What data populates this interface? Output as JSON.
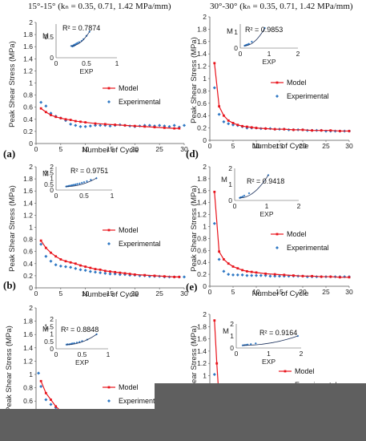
{
  "headers": {
    "left": "15°-15°  (kₙ = 0.35, 0.71, 1.42 MPa/mm)",
    "right": "30°-30°  (kₙ = 0.35, 0.71, 1.42 MPa/mm)"
  },
  "colors": {
    "model": "#e8141c",
    "experimental": "#2f78c4",
    "inset_trend": "#1a2f5a",
    "occluder": "#5f5f5f"
  },
  "chart_data": [
    {
      "id": "a",
      "type": "line",
      "panel_label": "(a)",
      "xlabel": "Number of Cycle",
      "ylabel": "Peak Shear Stress (MPa)",
      "xlim": [
        0,
        30
      ],
      "ylim": [
        0,
        2
      ],
      "xticks": [
        0,
        5,
        10,
        15,
        20,
        25,
        30
      ],
      "yticks": [
        0,
        0.2,
        0.4,
        0.6,
        0.8,
        1,
        1.2,
        1.4,
        1.6,
        1.8,
        2
      ],
      "legend": [
        "Model",
        "Experimental"
      ],
      "model": {
        "x": [
          1,
          2,
          3,
          4,
          5,
          6,
          7,
          8,
          9,
          10,
          12,
          14,
          16,
          18,
          20,
          22,
          24,
          26,
          28,
          29
        ],
        "y": [
          0.58,
          0.52,
          0.47,
          0.44,
          0.42,
          0.4,
          0.39,
          0.37,
          0.36,
          0.35,
          0.33,
          0.32,
          0.31,
          0.3,
          0.29,
          0.28,
          0.27,
          0.26,
          0.25,
          0.25
        ]
      },
      "experimental": {
        "x": [
          1,
          2,
          3,
          4,
          5,
          6,
          7,
          8,
          9,
          10,
          11,
          12,
          13,
          14,
          15,
          16,
          17,
          18,
          19,
          20,
          21,
          22,
          23,
          24,
          25,
          26,
          27,
          28,
          29,
          30
        ],
        "y": [
          0.68,
          0.62,
          0.5,
          0.45,
          0.42,
          0.38,
          0.32,
          0.3,
          0.28,
          0.28,
          0.29,
          0.3,
          0.3,
          0.3,
          0.29,
          0.3,
          0.31,
          0.3,
          0.29,
          0.28,
          0.29,
          0.3,
          0.3,
          0.29,
          0.3,
          0.29,
          0.28,
          0.3,
          0.27,
          0.3
        ]
      },
      "inset": {
        "r2": "R² = 0.7874",
        "xlabel": "EXP",
        "ylabel": "M",
        "xlim": [
          0,
          1
        ],
        "ylim": [
          0,
          0.8
        ],
        "xticks": [
          0,
          0.5,
          1
        ],
        "yticks": [
          0,
          0.5
        ],
        "x": [
          0.25,
          0.27,
          0.28,
          0.29,
          0.3,
          0.3,
          0.31,
          0.32,
          0.33,
          0.35,
          0.38,
          0.42,
          0.45,
          0.5,
          0.55
        ],
        "y": [
          0.28,
          0.27,
          0.29,
          0.28,
          0.3,
          0.31,
          0.3,
          0.32,
          0.33,
          0.35,
          0.37,
          0.4,
          0.44,
          0.52,
          0.62
        ]
      }
    },
    {
      "id": "b",
      "type": "line",
      "panel_label": "(b)",
      "xlabel": "Number of Cycle",
      "ylabel": "Peak Shear Stress (MPa)",
      "xlim": [
        0,
        30
      ],
      "ylim": [
        0,
        2
      ],
      "xticks": [
        0,
        5,
        10,
        15,
        20,
        25,
        30
      ],
      "yticks": [
        0,
        0.2,
        0.4,
        0.6,
        0.8,
        1,
        1.2,
        1.4,
        1.6,
        1.8,
        2
      ],
      "legend": [
        "Model",
        "Experimental"
      ],
      "model": {
        "x": [
          1,
          2,
          3,
          4,
          5,
          6,
          7,
          8,
          9,
          10,
          11,
          12,
          13,
          14,
          15,
          16,
          17,
          18,
          19,
          20,
          22,
          24,
          26,
          28,
          29
        ],
        "y": [
          0.78,
          0.66,
          0.58,
          0.52,
          0.47,
          0.44,
          0.42,
          0.4,
          0.37,
          0.35,
          0.33,
          0.31,
          0.3,
          0.28,
          0.27,
          0.26,
          0.25,
          0.24,
          0.23,
          0.22,
          0.21,
          0.2,
          0.19,
          0.18,
          0.18
        ]
      },
      "experimental": {
        "x": [
          1,
          2,
          3,
          4,
          5,
          6,
          7,
          8,
          9,
          10,
          11,
          12,
          13,
          14,
          15,
          16,
          17,
          18,
          19,
          20,
          21,
          22,
          23,
          24,
          25,
          26,
          27,
          28,
          29,
          30
        ],
        "y": [
          0.72,
          0.52,
          0.44,
          0.38,
          0.36,
          0.35,
          0.34,
          0.32,
          0.3,
          0.29,
          0.27,
          0.26,
          0.25,
          0.24,
          0.23,
          0.23,
          0.22,
          0.22,
          0.21,
          0.21,
          0.2,
          0.2,
          0.19,
          0.19,
          0.19,
          0.18,
          0.18,
          0.18,
          0.18,
          0.18
        ]
      },
      "inset": {
        "r2": "R² = 0.9751",
        "xlabel": "",
        "ylabel": "M",
        "xlim": [
          0,
          1
        ],
        "ylim": [
          0,
          2
        ],
        "xticks": [
          0,
          0.5,
          1
        ],
        "yticks": [
          0,
          0.5,
          1,
          1.5,
          2
        ],
        "x": [
          0.18,
          0.2,
          0.22,
          0.24,
          0.26,
          0.28,
          0.3,
          0.32,
          0.35,
          0.38,
          0.42,
          0.46,
          0.5,
          0.55,
          0.62,
          0.72
        ],
        "y": [
          0.3,
          0.32,
          0.34,
          0.36,
          0.38,
          0.4,
          0.42,
          0.45,
          0.48,
          0.52,
          0.56,
          0.62,
          0.68,
          0.76,
          0.88,
          1.02
        ]
      }
    },
    {
      "id": "c",
      "type": "line",
      "panel_label": "",
      "xlabel": "",
      "ylabel": "Peak Shear Stress (MPa)",
      "xlim": [
        0,
        30
      ],
      "ylim": [
        0,
        2
      ],
      "xticks": [],
      "yticks": [
        0.4,
        0.6,
        0.8,
        1,
        1.2,
        1.4,
        1.6,
        1.8,
        2
      ],
      "legend": [
        "Model",
        "Experimental"
      ],
      "model": {
        "x": [
          1,
          2,
          3,
          4,
          5
        ],
        "y": [
          0.9,
          0.72,
          0.62,
          0.52,
          0.45
        ]
      },
      "experimental": {
        "x": [
          0.5,
          1,
          2,
          3,
          4,
          5
        ],
        "y": [
          1.02,
          0.82,
          0.62,
          0.55,
          0.5,
          0.44
        ]
      },
      "inset": {
        "r2": "R² = 0.8848",
        "xlabel": "EXP",
        "ylabel": "M",
        "xlim": [
          0,
          1
        ],
        "ylim": [
          0,
          2
        ],
        "xticks": [
          0,
          0.5,
          1
        ],
        "yticks": [
          0,
          0.5,
          1,
          1.5,
          2
        ],
        "x": [
          0.2,
          0.22,
          0.25,
          0.28,
          0.3,
          0.32,
          0.35,
          0.4,
          0.45,
          0.5,
          0.6,
          0.78
        ],
        "y": [
          0.28,
          0.3,
          0.3,
          0.32,
          0.34,
          0.36,
          0.38,
          0.42,
          0.46,
          0.52,
          0.62,
          0.98
        ]
      }
    },
    {
      "id": "d",
      "type": "line",
      "panel_label": "(d)",
      "xlabel": "Number of Cycle",
      "ylabel": "Peak Shear Stress (MPa)",
      "xlim": [
        0,
        30
      ],
      "ylim": [
        0,
        2
      ],
      "xticks": [
        0,
        5,
        10,
        15,
        20,
        25,
        30
      ],
      "yticks": [
        0,
        0.2,
        0.4,
        0.6,
        0.8,
        1,
        1.2,
        1.4,
        1.6,
        1.8,
        2
      ],
      "legend": [
        "Model",
        "Experimental"
      ],
      "model": {
        "x": [
          1,
          2,
          3,
          4,
          5,
          6,
          7,
          8,
          9,
          10,
          12,
          14,
          16,
          18,
          20,
          22,
          24,
          26,
          28,
          30
        ],
        "y": [
          1.25,
          0.55,
          0.4,
          0.32,
          0.28,
          0.25,
          0.23,
          0.22,
          0.21,
          0.2,
          0.19,
          0.18,
          0.18,
          0.17,
          0.17,
          0.16,
          0.16,
          0.16,
          0.15,
          0.15
        ]
      },
      "experimental": {
        "x": [
          1,
          2,
          3,
          4,
          5,
          6,
          7,
          8,
          9,
          10,
          11,
          12,
          13,
          14,
          15,
          16,
          17,
          18,
          19,
          20,
          21,
          22,
          23,
          24,
          25,
          26,
          27,
          28,
          29,
          30
        ],
        "y": [
          0.85,
          0.42,
          0.3,
          0.27,
          0.25,
          0.24,
          0.22,
          0.2,
          0.2,
          0.2,
          0.19,
          0.19,
          0.19,
          0.18,
          0.18,
          0.18,
          0.17,
          0.17,
          0.17,
          0.17,
          0.16,
          0.16,
          0.16,
          0.16,
          0.15,
          0.15,
          0.15,
          0.15,
          0.15,
          0.15
        ]
      },
      "inset": {
        "r2": "R² = 0.9853",
        "xlabel": "EXP",
        "ylabel": "M",
        "xlim": [
          0,
          2
        ],
        "ylim": [
          0,
          1.5
        ],
        "xticks": [
          0,
          1,
          2
        ],
        "yticks": [
          0,
          1
        ],
        "x": [
          0.15,
          0.18,
          0.2,
          0.22,
          0.25,
          0.28,
          0.3,
          0.4,
          0.85
        ],
        "y": [
          0.15,
          0.17,
          0.18,
          0.2,
          0.22,
          0.24,
          0.26,
          0.4,
          1.25
        ]
      }
    },
    {
      "id": "e",
      "type": "line",
      "panel_label": "(e)",
      "xlabel": "Number of Cycle",
      "ylabel": "Peak Shear Stress (MPa)",
      "xlim": [
        0,
        30
      ],
      "ylim": [
        0,
        2
      ],
      "xticks": [
        0,
        5,
        10,
        15,
        20,
        25,
        30
      ],
      "yticks": [
        0,
        0.2,
        0.4,
        0.6,
        0.8,
        1,
        1.2,
        1.4,
        1.6,
        1.8,
        2
      ],
      "legend": [
        "Model",
        "Experimental"
      ],
      "model": {
        "x": [
          1,
          2,
          3,
          4,
          5,
          6,
          7,
          8,
          9,
          10,
          12,
          14,
          16,
          18,
          20,
          22,
          24,
          26,
          28,
          30
        ],
        "y": [
          1.58,
          0.58,
          0.45,
          0.38,
          0.33,
          0.3,
          0.27,
          0.25,
          0.24,
          0.23,
          0.21,
          0.2,
          0.19,
          0.18,
          0.17,
          0.17,
          0.16,
          0.16,
          0.15,
          0.15
        ]
      },
      "experimental": {
        "x": [
          1,
          2,
          3,
          4,
          5,
          6,
          7,
          8,
          9,
          10,
          11,
          12,
          13,
          14,
          15,
          16,
          17,
          18,
          19,
          20,
          21,
          22,
          23,
          24,
          25,
          26,
          27,
          28,
          29,
          30
        ],
        "y": [
          1.05,
          0.45,
          0.25,
          0.2,
          0.19,
          0.19,
          0.19,
          0.18,
          0.18,
          0.18,
          0.18,
          0.18,
          0.17,
          0.17,
          0.17,
          0.17,
          0.17,
          0.17,
          0.17,
          0.17,
          0.16,
          0.16,
          0.16,
          0.16,
          0.16,
          0.16,
          0.16,
          0.16,
          0.16,
          0.16
        ]
      },
      "inset": {
        "r2": "R² = 0.9418",
        "xlabel": "EXP",
        "ylabel": "M",
        "xlim": [
          0,
          2
        ],
        "ylim": [
          0,
          2
        ],
        "xticks": [
          0,
          1,
          2
        ],
        "yticks": [
          0,
          1,
          2
        ],
        "x": [
          0.16,
          0.18,
          0.2,
          0.25,
          0.3,
          0.45,
          1.05
        ],
        "y": [
          0.16,
          0.18,
          0.2,
          0.24,
          0.3,
          0.45,
          1.58
        ]
      }
    },
    {
      "id": "f",
      "type": "line",
      "panel_label": "",
      "xlabel": "",
      "ylabel": "Peak Shear Stress (MPa)",
      "xlim": [
        0,
        30
      ],
      "ylim": [
        0,
        2
      ],
      "xticks": [],
      "yticks": [
        0.6,
        0.8,
        1,
        1.2,
        1.4,
        1.6,
        1.8,
        2
      ],
      "legend": [
        "Model",
        "Experimental"
      ],
      "model": {
        "x": [
          1,
          1.5,
          2
        ],
        "y": [
          1.9,
          1.2,
          0.62
        ]
      },
      "experimental": {
        "x": [
          1
        ],
        "y": [
          1.02
        ]
      },
      "inset": {
        "r2": "R² = 0.9164",
        "xlabel": "EXP",
        "ylabel": "M",
        "xlim": [
          0,
          2
        ],
        "ylim": [
          0,
          2
        ],
        "xticks": [
          0,
          1,
          2
        ],
        "yticks": [
          0,
          1,
          2
        ],
        "x": [
          0.2,
          0.25,
          0.3,
          0.35,
          0.45,
          0.6,
          1.9
        ],
        "y": [
          0.22,
          0.24,
          0.26,
          0.28,
          0.32,
          0.38,
          1.0
        ]
      }
    }
  ]
}
